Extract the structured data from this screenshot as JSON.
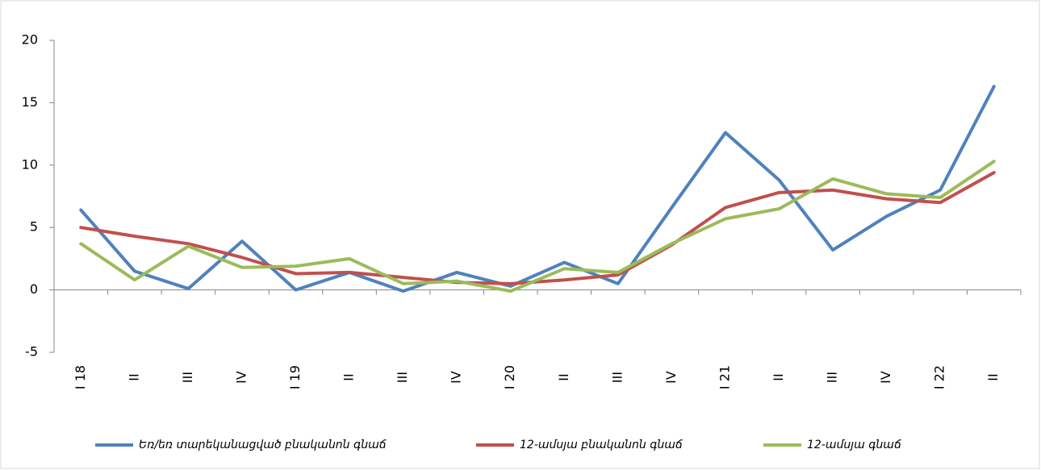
{
  "chart_data": {
    "type": "line",
    "categories": [
      "I 18",
      "II",
      "III",
      "IV",
      "I 19",
      "II",
      "III",
      "IV",
      "I 20",
      "II",
      "III",
      "IV",
      "I 21",
      "II",
      "III",
      "IV",
      "I 22",
      "II"
    ],
    "series": [
      {
        "name": "Եռ/եռ տարեկանացված բնականոն գնաճ",
        "color": "#4f81bd",
        "values": [
          6.4,
          1.5,
          0.1,
          3.9,
          0.0,
          1.4,
          -0.1,
          1.4,
          0.3,
          2.2,
          0.5,
          6.6,
          12.6,
          8.8,
          3.2,
          5.9,
          8.0,
          16.3
        ]
      },
      {
        "name": "12-ամսյա բնականոն գնաճ",
        "color": "#c0504d",
        "values": [
          5.0,
          4.3,
          3.7,
          2.6,
          1.3,
          1.4,
          1.0,
          0.6,
          0.5,
          0.8,
          1.2,
          3.6,
          6.6,
          7.8,
          8.0,
          7.3,
          7.0,
          9.4
        ]
      },
      {
        "name": "12-ամսյա գնաճ",
        "color": "#9bbb59",
        "values": [
          3.7,
          0.8,
          3.5,
          1.8,
          1.9,
          2.5,
          0.5,
          0.7,
          -0.1,
          1.7,
          1.4,
          3.7,
          5.7,
          6.5,
          8.9,
          7.7,
          7.4,
          10.3
        ]
      }
    ],
    "ylim": [
      -5,
      20
    ],
    "yticks": [
      -5,
      0,
      5,
      10,
      15,
      20
    ],
    "legend": "bottom"
  }
}
